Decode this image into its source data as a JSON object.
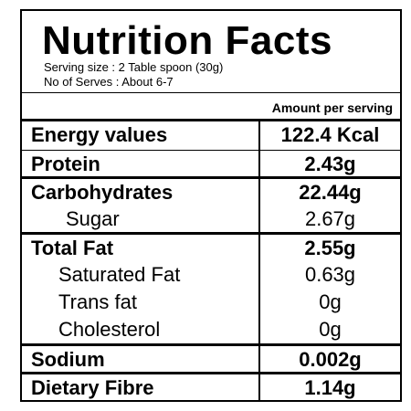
{
  "header": {
    "title": "Nutrition Facts",
    "serving_size": "Serving size : 2 Table spoon (30g)",
    "serves": "No of Serves : About 6-7"
  },
  "table": {
    "column_header": "Amount per serving",
    "rows": [
      [
        "Energy values",
        "122.4 Kcal"
      ],
      [
        "Protein",
        "2.43g"
      ],
      [
        "Carbohydrates",
        "22.44g"
      ],
      [
        "Sugar",
        "2.67g"
      ],
      [
        "Total Fat",
        "2.55g"
      ],
      [
        "Saturated Fat",
        "0.63g"
      ],
      [
        "Trans fat",
        "0g"
      ],
      [
        "Cholesterol",
        "0g"
      ],
      [
        "Sodium",
        "0.002g"
      ],
      [
        "Dietary Fibre",
        "1.14g"
      ]
    ]
  }
}
